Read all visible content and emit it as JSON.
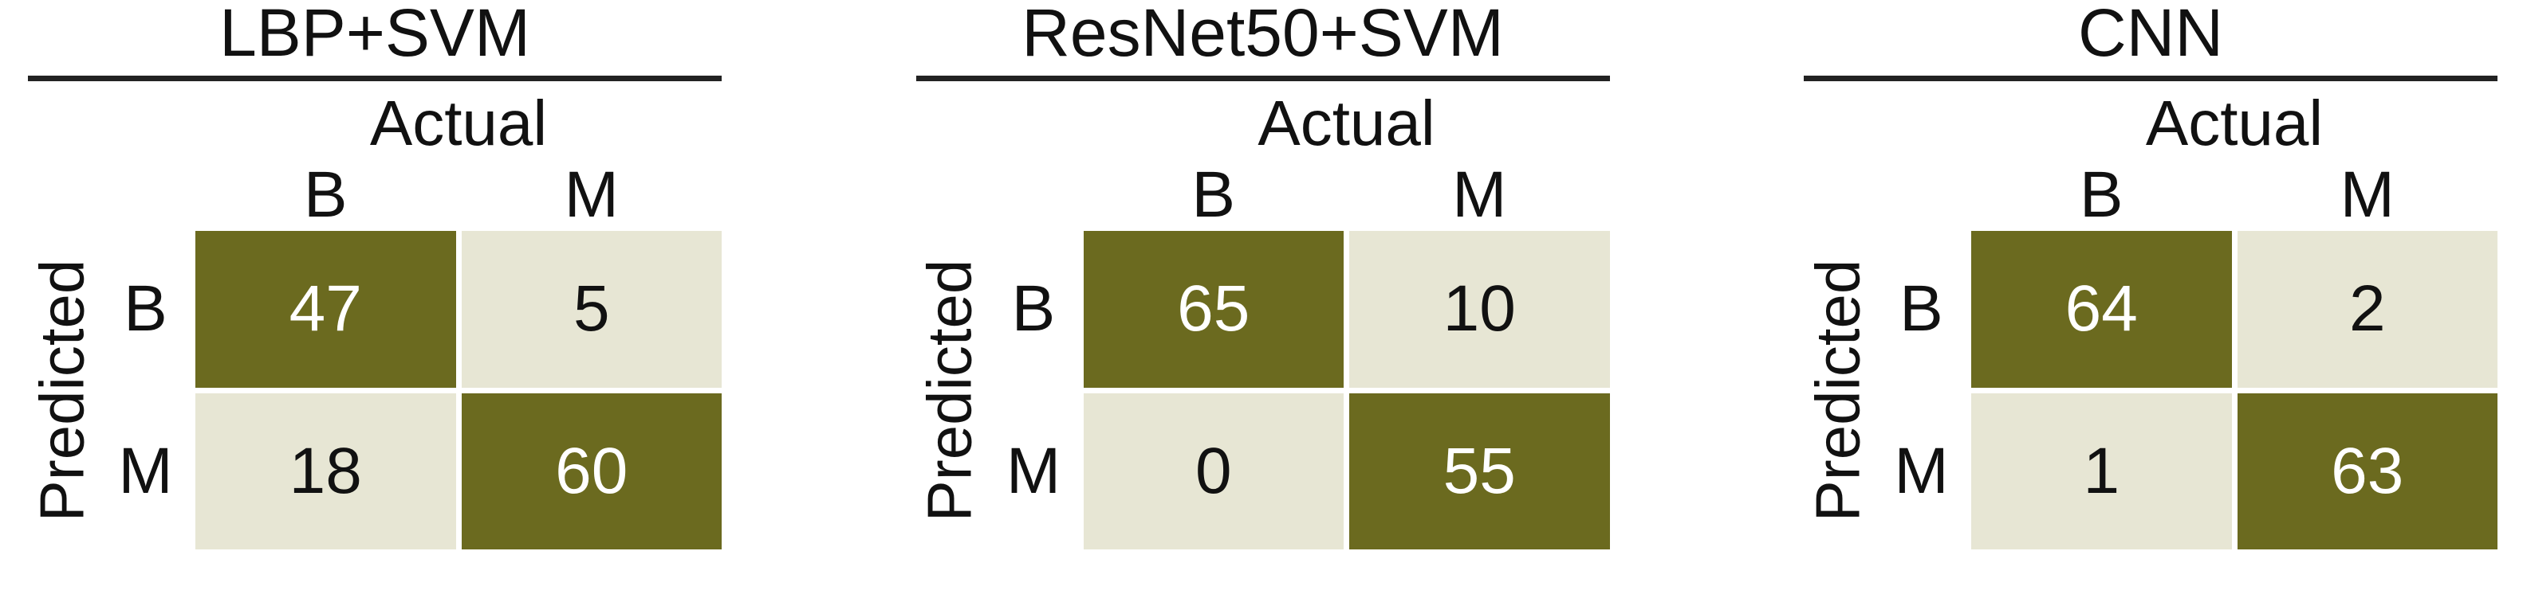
{
  "colors": {
    "dark_cell": "#6B6A1F",
    "light_cell": "#E7E6D4",
    "rule": "#222222",
    "text": "#111111",
    "text_on_dark": "#FFFFFF"
  },
  "chart_data": [
    {
      "type": "heatmap",
      "title": "LBP+SVM",
      "x_axis_label": "Actual",
      "y_axis_label": "Predicted",
      "col_labels": [
        "B",
        "M"
      ],
      "row_labels": [
        "B",
        "M"
      ],
      "matrix": [
        [
          47,
          5
        ],
        [
          18,
          60
        ]
      ],
      "highlight": "diagonal cells dark olive, off-diagonal cream"
    },
    {
      "type": "heatmap",
      "title": "ResNet50+SVM",
      "x_axis_label": "Actual",
      "y_axis_label": "Predicted",
      "col_labels": [
        "B",
        "M"
      ],
      "row_labels": [
        "B",
        "M"
      ],
      "matrix": [
        [
          65,
          10
        ],
        [
          0,
          55
        ]
      ],
      "highlight": "diagonal cells dark olive, off-diagonal cream"
    },
    {
      "type": "heatmap",
      "title": "CNN",
      "x_axis_label": "Actual",
      "y_axis_label": "Predicted",
      "col_labels": [
        "B",
        "M"
      ],
      "row_labels": [
        "B",
        "M"
      ],
      "matrix": [
        [
          64,
          2
        ],
        [
          1,
          63
        ]
      ],
      "highlight": "diagonal cells dark olive, off-diagonal cream"
    }
  ]
}
